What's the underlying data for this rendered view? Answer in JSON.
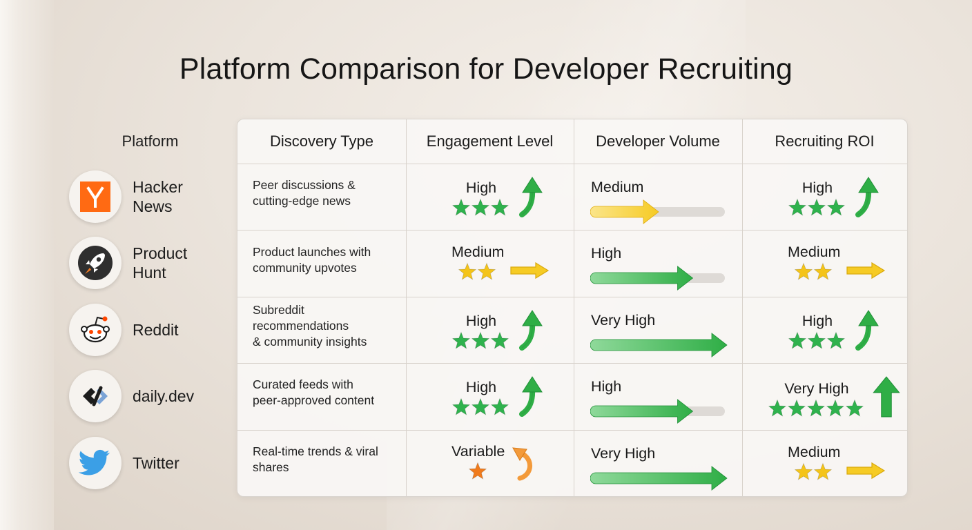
{
  "title": "Platform Comparison for Developer Recruiting",
  "platform_header": "Platform",
  "columns": [
    "Discovery Type",
    "Engagement Level",
    "Developer Volume",
    "Recruiting ROI"
  ],
  "rating_scale_max": 5,
  "volume_scale_max": 4,
  "colors": {
    "star_green": "#2fb24d",
    "star_gold": "#f4c419",
    "star_orange": "#f07b1c",
    "arrow_green": "#2fae46",
    "arrow_yellow": "#f6cb24",
    "arrow_orange": "#f39a3a",
    "track_gray": "#dedad6"
  },
  "rows": [
    {
      "platform": "Hacker News",
      "platform_lines": [
        "Hacker",
        "News"
      ],
      "icon": "hacker-news-logo-icon",
      "discovery": [
        "Peer discussions &",
        "cutting-edge news"
      ],
      "engagement": {
        "label": "High",
        "stars": 3,
        "star_color": "green",
        "trend": "up"
      },
      "volume": {
        "label": "Medium",
        "level": 2,
        "color": "yellow"
      },
      "roi": {
        "label": "High",
        "stars": 3,
        "star_color": "green",
        "trend": "up"
      }
    },
    {
      "platform": "Product Hunt",
      "platform_lines": [
        "Product",
        "Hunt"
      ],
      "icon": "product-hunt-rocket-icon",
      "discovery": [
        "Product launches with",
        "community upvotes"
      ],
      "engagement": {
        "label": "Medium",
        "stars": 2,
        "star_color": "gold",
        "trend": "right"
      },
      "volume": {
        "label": "High",
        "level": 3,
        "color": "green"
      },
      "roi": {
        "label": "Medium",
        "stars": 2,
        "star_color": "gold",
        "trend": "right"
      }
    },
    {
      "platform": "Reddit",
      "platform_lines": [
        "Reddit"
      ],
      "icon": "reddit-alien-icon",
      "discovery": [
        "Subreddit",
        "recommendations",
        "& community insights"
      ],
      "engagement": {
        "label": "High",
        "stars": 3,
        "star_color": "green",
        "trend": "up"
      },
      "volume": {
        "label": "Very High",
        "level": 4,
        "color": "green"
      },
      "roi": {
        "label": "High",
        "stars": 3,
        "star_color": "green",
        "trend": "up"
      }
    },
    {
      "platform": "daily.dev",
      "platform_lines": [
        "daily.dev"
      ],
      "icon": "daily-dev-logo-icon",
      "discovery": [
        "Curated feeds with",
        "peer-approved content"
      ],
      "engagement": {
        "label": "High",
        "stars": 3,
        "star_color": "green",
        "trend": "up"
      },
      "volume": {
        "label": "High",
        "level": 3,
        "color": "green"
      },
      "roi": {
        "label": "Very High",
        "stars": 5,
        "star_color": "green",
        "trend": "up-big"
      }
    },
    {
      "platform": "Twitter",
      "platform_lines": [
        "Twitter"
      ],
      "icon": "twitter-bird-icon",
      "discovery": [
        "Real-time trends & viral",
        "shares"
      ],
      "engagement": {
        "label": "Variable",
        "stars": 1,
        "star_color": "orange",
        "trend": "curve-back"
      },
      "volume": {
        "label": "Very High",
        "level": 4,
        "color": "green"
      },
      "roi": {
        "label": "Medium",
        "stars": 2,
        "star_color": "gold",
        "trend": "right"
      }
    }
  ]
}
